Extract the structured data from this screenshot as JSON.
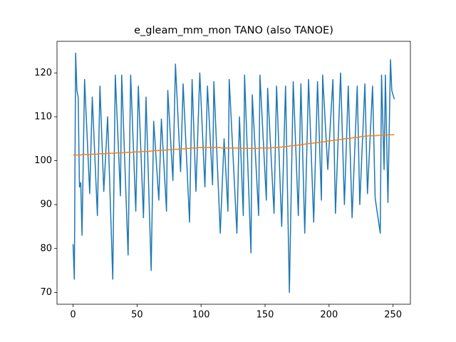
{
  "chart_data": {
    "type": "line",
    "title": "e_gleam_mm_mon TANO (also TANOE)",
    "x": [
      0,
      1,
      2,
      3,
      4,
      5,
      6,
      7,
      8,
      9,
      10,
      11,
      12,
      13,
      14,
      15,
      16,
      17,
      18,
      19,
      20,
      21,
      22,
      23,
      24,
      25,
      26,
      27,
      28,
      29,
      30,
      31,
      32,
      33,
      34,
      35,
      36,
      37,
      38,
      39,
      40,
      41,
      42,
      43,
      44,
      45,
      46,
      47,
      48,
      49,
      50,
      51,
      52,
      53,
      54,
      55,
      56,
      57,
      58,
      59,
      60,
      61,
      62,
      63,
      64,
      65,
      66,
      67,
      68,
      69,
      70,
      71,
      72,
      73,
      74,
      75,
      76,
      77,
      78,
      79,
      80,
      81,
      82,
      83,
      84,
      85,
      86,
      87,
      88,
      89,
      90,
      91,
      92,
      93,
      94,
      95,
      96,
      97,
      98,
      99,
      100,
      101,
      102,
      103,
      104,
      105,
      106,
      107,
      108,
      109,
      110,
      111,
      112,
      113,
      114,
      115,
      116,
      117,
      118,
      119,
      120,
      121,
      122,
      123,
      124,
      125,
      126,
      127,
      128,
      129,
      130,
      131,
      132,
      133,
      134,
      135,
      136,
      137,
      138,
      139,
      140,
      141,
      142,
      143,
      144,
      145,
      146,
      147,
      148,
      149,
      150,
      151,
      152,
      153,
      154,
      155,
      156,
      157,
      158,
      159,
      160,
      161,
      162,
      163,
      164,
      165,
      166,
      167,
      168,
      169,
      170,
      171,
      172,
      173,
      174,
      175,
      176,
      177,
      178,
      179,
      180,
      181,
      182,
      183,
      184,
      185,
      186,
      187,
      188,
      189,
      190,
      191,
      192,
      193,
      194,
      195,
      196,
      197,
      198,
      199,
      200,
      201,
      202,
      203,
      204,
      205,
      206,
      207,
      208,
      209,
      210,
      211,
      212,
      213,
      214,
      215,
      216,
      217,
      218,
      219,
      220,
      221,
      222,
      223,
      224,
      225,
      226,
      227,
      228,
      229,
      230,
      231,
      232,
      233,
      234,
      235,
      236,
      237,
      238,
      239,
      240,
      241,
      242,
      243,
      244,
      245,
      246,
      247,
      248,
      249,
      250,
      251
    ],
    "series": [
      {
        "color": "#1f77b4",
        "values": [
          81,
          73,
          124.5,
          116,
          114.5,
          94,
          95,
          83,
          100.8,
          118.5,
          112,
          105.5,
          99,
          92.5,
          103.5,
          114.5,
          107.8,
          101,
          94.3,
          87.5,
          102.3,
          117,
          109,
          101,
          93,
          98.7,
          104.3,
          110,
          100.8,
          91.5,
          82.3,
          73,
          96.3,
          119.5,
          112.6,
          105.8,
          98.9,
          92,
          119.5,
          111.3,
          103.1,
          94.9,
          86.7,
          78.5,
          99,
          119.5,
          111.8,
          104,
          96.3,
          88.5,
          102.8,
          117,
          109.5,
          102,
          94.5,
          87,
          100.8,
          114.5,
          104.6,
          94.8,
          84.9,
          75,
          92,
          109,
          104.5,
          100,
          95.5,
          91,
          100.3,
          109.5,
          104.3,
          99,
          93.8,
          88.5,
          116,
          110.9,
          105.8,
          100.6,
          95.5,
          108.8,
          122,
          115.9,
          109.8,
          103.6,
          97.5,
          107.5,
          117.5,
          111.2,
          104.9,
          98.6,
          92.3,
          86,
          102.3,
          118.5,
          110,
          101.5,
          93,
          102,
          111,
          120,
          113.5,
          107,
          100.5,
          94,
          105.5,
          117,
          111.4,
          105.8,
          100.1,
          94.5,
          118,
          111.1,
          104.2,
          97.3,
          90.4,
          83.5,
          90.7,
          97.8,
          105,
          99.5,
          94,
          88.5,
          118.5,
          112.7,
          106.8,
          101,
          95.2,
          89.3,
          83.5,
          96.8,
          110,
          102.5,
          95,
          87.5,
          119.5,
          111.4,
          103.3,
          95.2,
          87.1,
          79,
          115,
          109.5,
          104,
          98.5,
          93,
          87.5,
          119.5,
          113.8,
          108.1,
          102.4,
          96.7,
          91,
          116.5,
          110.8,
          105.1,
          99.4,
          93.7,
          88,
          102.5,
          117,
          109,
          101,
          93,
          85,
          95.7,
          106.3,
          117,
          101.3,
          85.7,
          70,
          86,
          102,
          118,
          110.4,
          102.8,
          95.1,
          87.5,
          102.5,
          117.5,
          106.2,
          94.8,
          83.5,
          95.2,
          106.8,
          118.5,
          110.4,
          102.3,
          94.1,
          86,
          96.7,
          107.3,
          118,
          109,
          100,
          91,
          119.5,
          114.1,
          108.8,
          103.4,
          98,
          103.1,
          108.3,
          113.4,
          118.5,
          103.3,
          88,
          96,
          104,
          112,
          120,
          110,
          100,
          90,
          99,
          108,
          117,
          107,
          97,
          87,
          94.5,
          102,
          109.5,
          117,
          103.5,
          90,
          96.9,
          103.8,
          110.6,
          117.5,
          105,
          92.5,
          98.6,
          104.8,
          110.9,
          117,
          104.3,
          91.5,
          89.5,
          87.5,
          85.5,
          83.5,
          119.5,
          108.8,
          98,
          119.5,
          105,
          90.5,
          106.8,
          123,
          116,
          115,
          114
        ]
      },
      {
        "color": "#ff7f0e",
        "values": [
          101.3,
          101.3,
          101.3,
          101.3,
          101.3,
          101.3,
          101.3,
          101.4,
          101.4,
          101.4,
          101.4,
          101.4,
          101.4,
          101.4,
          101.5,
          101.5,
          101.5,
          101.5,
          101.5,
          101.5,
          101.6,
          101.6,
          101.6,
          101.6,
          101.6,
          101.6,
          101.6,
          101.7,
          101.7,
          101.7,
          101.7,
          101.7,
          101.7,
          101.7,
          101.8,
          101.8,
          101.8,
          101.8,
          101.8,
          101.8,
          101.9,
          101.9,
          101.9,
          101.9,
          101.9,
          101.9,
          101.9,
          102,
          102,
          102,
          102,
          102,
          102,
          102,
          102.1,
          102.1,
          102.1,
          102.1,
          102.1,
          102.1,
          102.2,
          102.2,
          102.2,
          102.3,
          102.3,
          102.3,
          102.3,
          102.3,
          102.4,
          102.4,
          102.4,
          102.4,
          102.4,
          102.5,
          102.5,
          102.5,
          102.5,
          102.5,
          102.6,
          102.6,
          102.6,
          102.6,
          102.6,
          102.7,
          102.7,
          102.7,
          102.7,
          102.7,
          102.8,
          102.8,
          102.8,
          102.8,
          102.8,
          102.9,
          102.9,
          102.9,
          102.9,
          102.9,
          103,
          103,
          103,
          103,
          103,
          103,
          103,
          103,
          103,
          103,
          103,
          103,
          103,
          103,
          103,
          103,
          103,
          103,
          102.9,
          102.9,
          102.9,
          102.9,
          102.9,
          102.9,
          102.9,
          102.9,
          102.9,
          102.9,
          102.9,
          102.9,
          102.9,
          102.9,
          102.9,
          102.8,
          102.8,
          102.8,
          102.8,
          102.8,
          102.8,
          102.8,
          102.8,
          102.8,
          102.8,
          102.8,
          102.8,
          102.8,
          102.8,
          102.8,
          102.9,
          102.9,
          102.9,
          102.9,
          102.9,
          102.9,
          102.9,
          102.9,
          102.9,
          102.9,
          103,
          103,
          103,
          103,
          103,
          103.1,
          103.1,
          103.1,
          103.2,
          103.2,
          103.2,
          103.3,
          103.3,
          103.3,
          103.4,
          103.4,
          103.4,
          103.5,
          103.5,
          103.5,
          103.6,
          103.6,
          103.6,
          103.7,
          103.7,
          103.8,
          103.8,
          103.8,
          103.9,
          103.9,
          103.9,
          104,
          104,
          104.1,
          104.1,
          104.1,
          104.2,
          104.2,
          104.3,
          104.3,
          104.3,
          104.4,
          104.4,
          104.5,
          104.5,
          104.5,
          104.6,
          104.6,
          104.6,
          104.7,
          104.7,
          104.8,
          104.8,
          104.8,
          104.9,
          104.9,
          105,
          105,
          105,
          105.1,
          105.1,
          105.1,
          105.2,
          105.2,
          105.3,
          105.3,
          105.3,
          105.4,
          105.4,
          105.5,
          105.5,
          105.5,
          105.6,
          105.6,
          105.6,
          105.7,
          105.7,
          105.7,
          105.7,
          105.7,
          105.7,
          105.7,
          105.8,
          105.8,
          105.8,
          105.8,
          105.8,
          105.8,
          105.8,
          105.9,
          105.9,
          105.9,
          105.9,
          105.9,
          105.9,
          105.9
        ]
      }
    ],
    "xlim": [
      -12.55,
      263.55
    ],
    "ylim": [
      67.3,
      127.2
    ],
    "xticks": [
      0,
      50,
      100,
      150,
      200,
      250
    ],
    "yticks": [
      70,
      80,
      90,
      100,
      110,
      120
    ]
  }
}
